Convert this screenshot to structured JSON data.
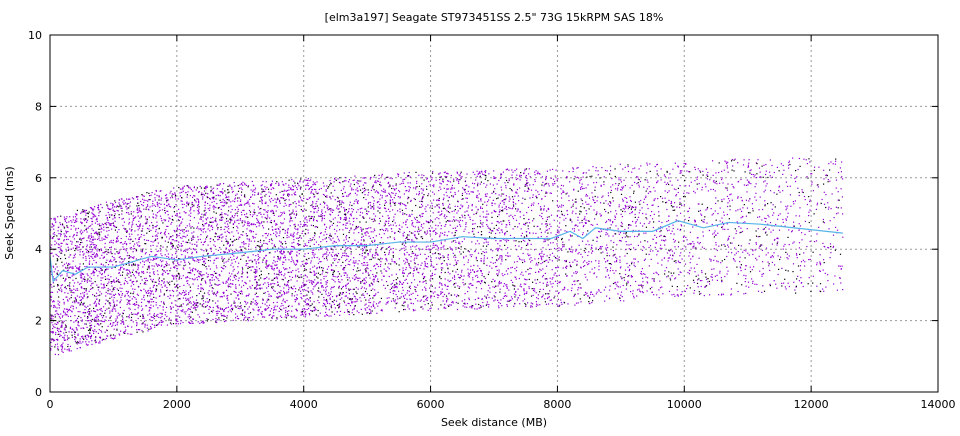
{
  "chart_data": {
    "type": "scatter",
    "title": "[elm3a197] Seagate ST973451SS 2.5\" 73G 15kRPM SAS 18%",
    "xlabel": "Seek distance (MB)",
    "ylabel": "Seek Speed (ms)",
    "xlim": [
      0,
      14000
    ],
    "ylim": [
      0,
      10
    ],
    "xticks": [
      0,
      2000,
      4000,
      6000,
      8000,
      10000,
      12000,
      14000
    ],
    "yticks": [
      0,
      2,
      4,
      6,
      8,
      10
    ],
    "grid": true,
    "legend": "none",
    "colors": {
      "points": "#9400d3",
      "points_secondary": "#000000",
      "mean_line": "#56b4e9"
    },
    "scatter_envelope": {
      "x": [
        0,
        1000,
        2000,
        4000,
        6000,
        8000,
        10000,
        12000,
        12500
      ],
      "lower": [
        1.0,
        1.5,
        1.9,
        2.1,
        2.3,
        2.4,
        2.7,
        2.8,
        2.8
      ],
      "upper": [
        4.9,
        5.4,
        5.8,
        6.0,
        6.2,
        6.3,
        6.5,
        6.6,
        6.6
      ]
    },
    "mean_line": {
      "x": [
        0,
        50,
        200,
        400,
        600,
        1000,
        1400,
        1600,
        2000,
        2400,
        3000,
        3500,
        4000,
        4500,
        5000,
        5500,
        6000,
        6500,
        7000,
        7500,
        7900,
        8200,
        8400,
        8600,
        9000,
        9500,
        9900,
        10300,
        10700,
        11200,
        12500
      ],
      "y": [
        3.8,
        3.1,
        3.4,
        3.3,
        3.5,
        3.5,
        3.7,
        3.8,
        3.7,
        3.8,
        3.9,
        4.0,
        4.0,
        4.1,
        4.1,
        4.2,
        4.2,
        4.35,
        4.3,
        4.3,
        4.3,
        4.5,
        4.3,
        4.6,
        4.5,
        4.5,
        4.8,
        4.6,
        4.75,
        4.7,
        4.45
      ]
    }
  }
}
